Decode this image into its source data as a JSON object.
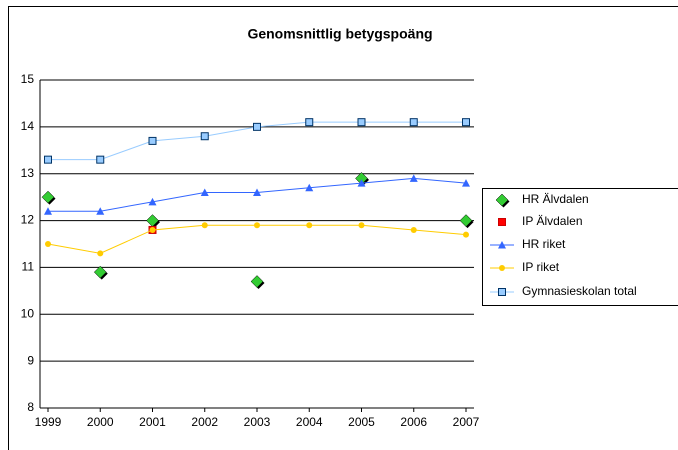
{
  "chart_data": {
    "type": "line",
    "title": "Genomsnittlig betygspoäng",
    "categories": [
      "1999",
      "2000",
      "2001",
      "2002",
      "2003",
      "2004",
      "2005",
      "2006",
      "2007"
    ],
    "series": [
      {
        "name": "HR Älvdalen",
        "color": "#33cc33",
        "marker": "diamond",
        "line": false,
        "values": [
          12.5,
          10.9,
          12.0,
          null,
          10.7,
          null,
          12.9,
          null,
          12.0
        ]
      },
      {
        "name": "IP Älvdalen",
        "color": "#ff0000",
        "marker": "square",
        "line": false,
        "values": [
          null,
          null,
          11.8,
          null,
          null,
          null,
          null,
          null,
          null
        ]
      },
      {
        "name": "HR riket",
        "color": "#3366ff",
        "marker": "triangle",
        "line": true,
        "values": [
          12.2,
          12.2,
          12.4,
          12.6,
          12.6,
          12.7,
          12.8,
          12.9,
          12.8
        ]
      },
      {
        "name": "IP riket",
        "color": "#ffcc00",
        "marker": "circle",
        "line": true,
        "values": [
          11.5,
          11.3,
          11.8,
          11.9,
          11.9,
          11.9,
          11.9,
          11.8,
          11.7
        ]
      },
      {
        "name": "Gymnasieskolan total",
        "color": "#99ccff",
        "marker": "square",
        "line": true,
        "values": [
          13.3,
          13.3,
          13.7,
          13.8,
          14.0,
          14.1,
          14.1,
          14.1,
          14.1
        ]
      }
    ],
    "ylim": [
      8,
      15
    ],
    "yticks": [
      8,
      9,
      10,
      11,
      12,
      13,
      14,
      15
    ],
    "grid": true,
    "legend": "right"
  }
}
